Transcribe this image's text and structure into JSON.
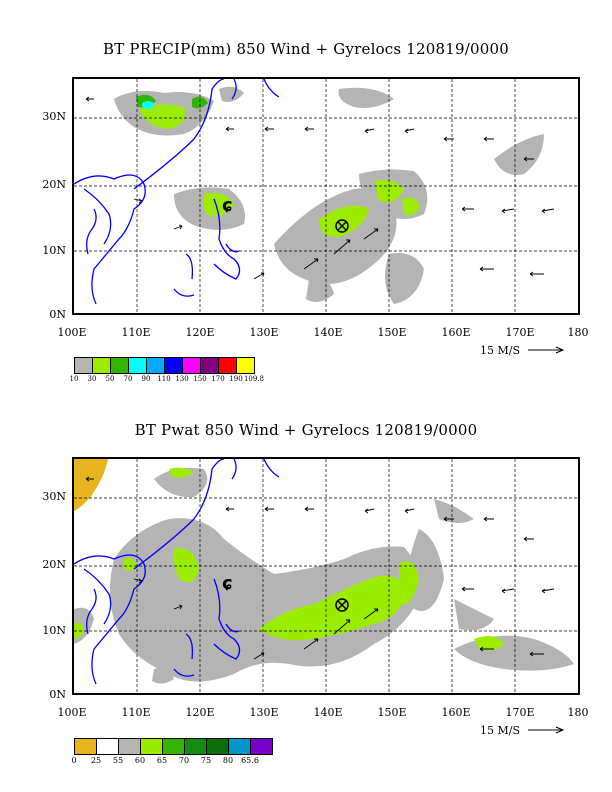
{
  "panels": [
    {
      "title": "BT PRECIP(mm) 850 Wind + Gyrelocs 120819/0000",
      "lat_labels": [
        "30N",
        "20N",
        "10N",
        "0N"
      ],
      "lon_labels": [
        "100E",
        "110E",
        "120E",
        "130E",
        "140E",
        "150E",
        "160E",
        "170E",
        "180"
      ],
      "reference_vector": "15 M/S",
      "colorbar_labels": [
        "10",
        "30",
        "50",
        "70",
        "90",
        "110",
        "130",
        "150",
        "170",
        "190",
        "109.8"
      ],
      "colorbar_colors": [
        "#b4b4b4",
        "#9bec00",
        "#32b400",
        "#00ffff",
        "#00aaff",
        "#0000ff",
        "#ff00ff",
        "#800080",
        "#ff0000",
        "#ffff00"
      ]
    },
    {
      "title": "BT Pwat 850 Wind + Gyrelocs 120819/0000",
      "lat_labels": [
        "30N",
        "20N",
        "10N",
        "0N"
      ],
      "lon_labels": [
        "100E",
        "110E",
        "120E",
        "130E",
        "140E",
        "150E",
        "160E",
        "170E",
        "180"
      ],
      "reference_vector": "15 M/S",
      "colorbar_labels": [
        "0",
        "25",
        "55",
        "60",
        "65",
        "70",
        "75",
        "80",
        "65.6"
      ],
      "colorbar_colors": [
        "#e6b41e",
        "#ffffff",
        "#b4b4b4",
        "#9bec00",
        "#32b400",
        "#148c14",
        "#0a6e0a",
        "#0096c8",
        "#7800c8"
      ]
    }
  ]
}
